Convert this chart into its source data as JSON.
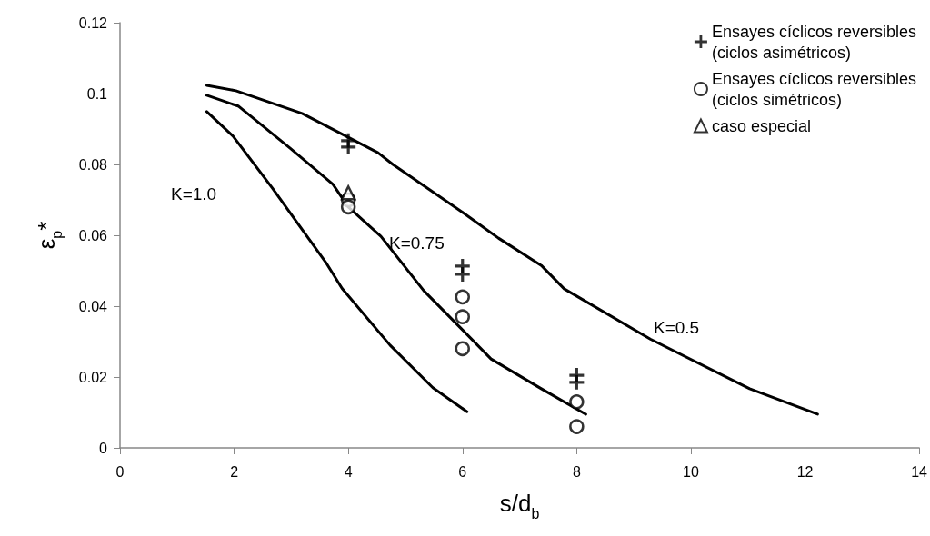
{
  "chart_data": {
    "type": "line",
    "xlabel": "s/d$_{b}$",
    "ylabel": "ε$_{p}$*",
    "xlim": [
      0,
      14
    ],
    "xticks": [
      0,
      2,
      4,
      6,
      8,
      10,
      12,
      14
    ],
    "ylim": [
      0,
      0.12
    ],
    "yticks": [
      0,
      0.02,
      0.04,
      0.06,
      0.08,
      0.1,
      0.12
    ],
    "grid": false,
    "legend": "top right",
    "line_style": "solid",
    "series": [
      {
        "color": "#000000",
        "marker": "none",
        "x": [
          1.52,
          1.98,
          2.67,
          3.62,
          3.89,
          4.73,
          5.48,
          6.08
        ],
        "values": [
          0.0949,
          0.088,
          0.0733,
          0.052,
          0.045,
          0.029,
          0.017,
          0.0102
        ]
      },
      {
        "color": "#000000",
        "marker": "none",
        "x": [
          1.52,
          2.08,
          2.98,
          3.73,
          4.0,
          4.57,
          5.32,
          6.0,
          6.5,
          7.38,
          8.16
        ],
        "values": [
          0.0995,
          0.0964,
          0.0846,
          0.0744,
          0.068,
          0.0597,
          0.0444,
          0.0333,
          0.0251,
          0.0167,
          0.0095
        ]
      },
      {
        "color": "#000000",
        "marker": "none",
        "x": [
          1.52,
          2.03,
          3.19,
          4.52,
          4.78,
          5.92,
          6.63,
          7.38,
          7.78,
          9.29,
          11.03,
          12.22
        ],
        "values": [
          0.1023,
          0.1008,
          0.0944,
          0.0833,
          0.08,
          0.0674,
          0.0592,
          0.0515,
          0.0449,
          0.0307,
          0.0167,
          0.0095
        ]
      },
      {
        "type": "scatter",
        "name": "Ensayes cíclicos reversibles (ciclos asimétricos)",
        "color": "#000000",
        "marker": "cross",
        "x": [
          4,
          4,
          6,
          6,
          8,
          8
        ],
        "values": [
          0.0867,
          0.0849,
          0.0513,
          0.049,
          0.0205,
          0.0185
        ]
      },
      {
        "type": "scatter",
        "name": "Ensayes cíclicos reversibles (ciclos simétricos)",
        "color": "#000000",
        "marker": "circle",
        "x": [
          4,
          4,
          6,
          6,
          6,
          8,
          8
        ],
        "values": [
          0.07,
          0.068,
          0.0426,
          0.037,
          0.028,
          0.013,
          0.006
        ]
      },
      {
        "type": "scatter",
        "name": "caso especial",
        "color": "#000000",
        "marker": "triangle",
        "x": [
          4
        ],
        "values": [
          0.072
        ]
      }
    ],
    "annotations": [
      "K=1.0",
      "K=0.75",
      "K=0.5"
    ]
  }
}
